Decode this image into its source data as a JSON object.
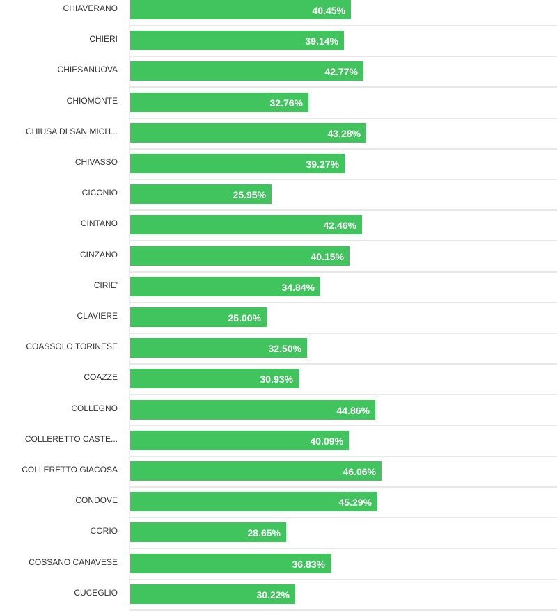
{
  "chart_data": {
    "type": "bar",
    "orientation": "horizontal",
    "title": "",
    "xlabel": "",
    "ylabel": "",
    "xlim": [
      0,
      100
    ],
    "grid": false,
    "bar_color": "#41c45e",
    "label_color": "#ffffff",
    "categories": [
      "CHIAVERANO",
      "CHIERI",
      "CHIESANUOVA",
      "CHIOMONTE",
      "CHIUSA DI SAN MICH...",
      "CHIVASSO",
      "CICONIO",
      "CINTANO",
      "CINZANO",
      "CIRIE'",
      "CLAVIERE",
      "COASSOLO TORINESE",
      "COAZZE",
      "COLLEGNO",
      "COLLERETTO CASTE...",
      "COLLERETTO GIACOSA",
      "CONDOVE",
      "CORIO",
      "COSSANO CANAVESE",
      "CUCEGLIO"
    ],
    "values": [
      40.45,
      39.14,
      42.77,
      32.76,
      43.28,
      39.27,
      25.95,
      42.46,
      40.15,
      34.84,
      25.0,
      32.5,
      30.93,
      44.86,
      40.09,
      46.06,
      45.29,
      28.65,
      36.83,
      30.22
    ],
    "value_labels": [
      "40.45%",
      "39.14%",
      "42.77%",
      "32.76%",
      "43.28%",
      "39.27%",
      "25.95%",
      "42.46%",
      "40.15%",
      "34.84%",
      "25.00%",
      "32.50%",
      "30.93%",
      "44.86%",
      "40.09%",
      "46.06%",
      "45.29%",
      "28.65%",
      "36.83%",
      "30.22%"
    ]
  }
}
